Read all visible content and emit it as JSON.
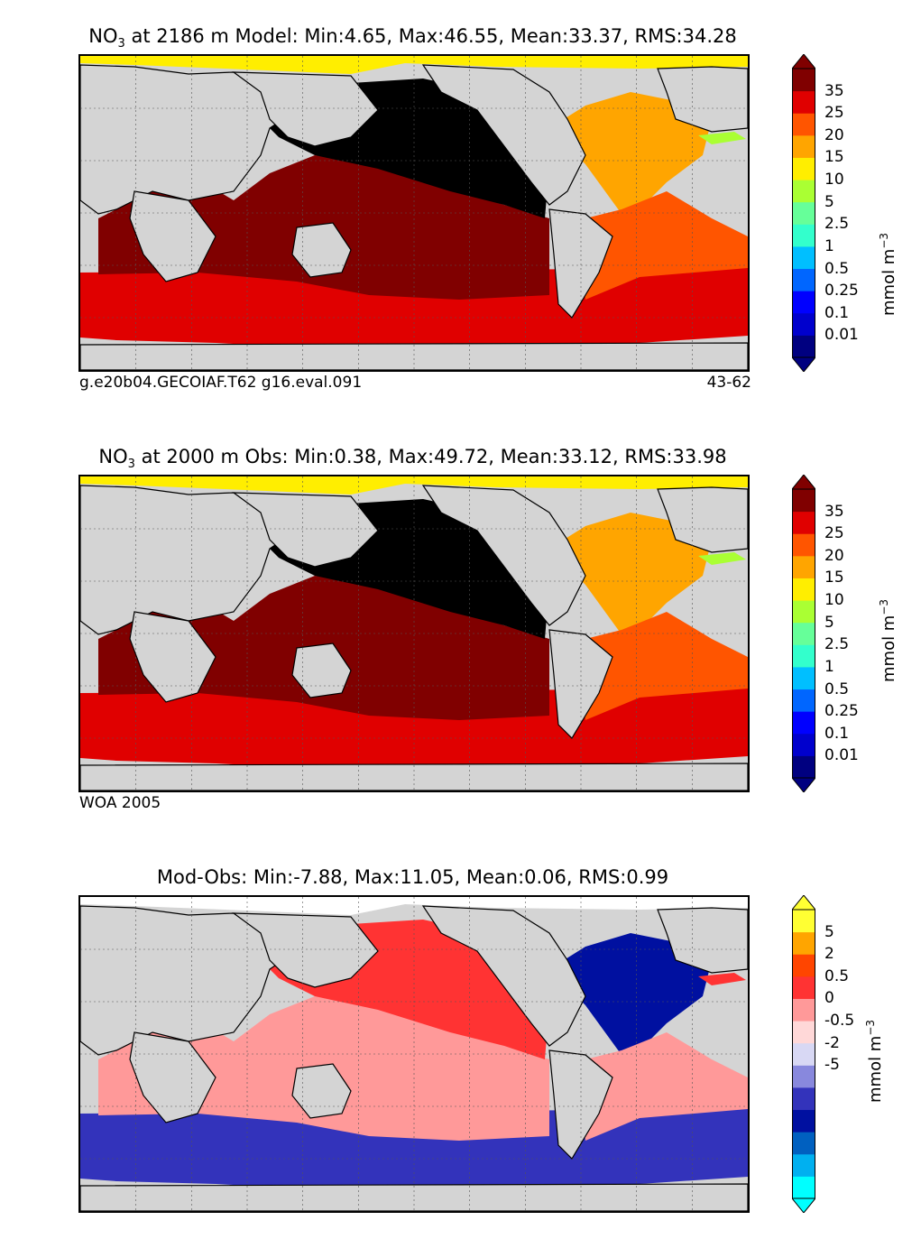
{
  "chart_data": [
    {
      "type": "heatmap",
      "title_prefix": "NO",
      "title_sub": "3",
      "title_rest": " at 2186 m Model: Min:4.65, Max:46.55, Mean:33.37, RMS:34.28",
      "stats": {
        "depth_m": 2186,
        "min": 4.65,
        "max": 46.55,
        "mean": 33.37,
        "rms": 34.28
      },
      "footer_left": "g.e20b04.GECOIAF.T62 g16.eval.091",
      "footer_right": "43-62",
      "colorbar_ticks": [
        "35",
        "25",
        "20",
        "15",
        "10",
        "5",
        "2.5",
        "1",
        "0.5",
        "0.25",
        "0.1",
        "0.01"
      ],
      "colorbar_colors": [
        "#000080",
        "#0000cd",
        "#0000ff",
        "#0066ff",
        "#00bfff",
        "#33ffcc",
        "#66ff99",
        "#aaff33",
        "#ffee00",
        "#ffa500",
        "#ff5500",
        "#e00000",
        "#800000"
      ],
      "unit_label": "mmol m",
      "unit_sup": "−3",
      "regions": {
        "north_pacific": "#000000",
        "tropical_indo_pacific": "#800000",
        "southern_ocean": "#e00000",
        "north_atlantic": "#ffa500",
        "south_atlantic": "#ff5500",
        "arctic": "#ffee00",
        "mediterranean": "#aaff33"
      }
    },
    {
      "type": "heatmap",
      "title_prefix": "NO",
      "title_sub": "3",
      "title_rest": " at 2000 m Obs: Min:0.38, Max:49.72, Mean:33.12, RMS:33.98",
      "stats": {
        "depth_m": 2000,
        "min": 0.38,
        "max": 49.72,
        "mean": 33.12,
        "rms": 33.98
      },
      "footer_left": "WOA 2005",
      "footer_right": "",
      "colorbar_ticks": [
        "35",
        "25",
        "20",
        "15",
        "10",
        "5",
        "2.5",
        "1",
        "0.5",
        "0.25",
        "0.1",
        "0.01"
      ],
      "colorbar_colors": [
        "#000080",
        "#0000cd",
        "#0000ff",
        "#0066ff",
        "#00bfff",
        "#33ffcc",
        "#66ff99",
        "#aaff33",
        "#ffee00",
        "#ffa500",
        "#ff5500",
        "#e00000",
        "#800000"
      ],
      "unit_label": "mmol m",
      "unit_sup": "−3",
      "regions": {
        "north_pacific": "#000000",
        "tropical_indo_pacific": "#800000",
        "southern_ocean": "#e00000",
        "north_atlantic": "#ffa500",
        "south_atlantic": "#ff5500",
        "arctic": "#ffee00",
        "mediterranean": "#aaff33"
      }
    },
    {
      "type": "heatmap",
      "title_prefix": "",
      "title_sub": "",
      "title_rest": "Mod-Obs: Min:-7.88, Max:11.05, Mean:0.06, RMS:0.99",
      "stats": {
        "min": -7.88,
        "max": 11.05,
        "mean": 0.06,
        "rms": 0.99
      },
      "footer_left": "",
      "footer_right": "",
      "colorbar_ticks": [
        "5",
        "2",
        "0.5",
        "0",
        "-0.5",
        "-2",
        "-5"
      ],
      "colorbar_colors": [
        "#00ffff",
        "#00b0f0",
        "#0060c0",
        "#0010a0",
        "#3333bb",
        "#8888dd",
        "#d8d8f4",
        "#ffd8d8",
        "#ff9999",
        "#ff3333",
        "#ff4500",
        "#ffa500",
        "#ffff33"
      ],
      "unit_label": "mmol m",
      "unit_sup": "−3",
      "regions": {
        "north_pacific": "#ff3333",
        "tropical_indo_pacific": "#ff9999",
        "southern_ocean": "#3333bb",
        "north_atlantic": "#0010a0",
        "south_atlantic": "#ff9999",
        "arctic": "#ffffff",
        "mediterranean": "#ff3333"
      }
    }
  ]
}
